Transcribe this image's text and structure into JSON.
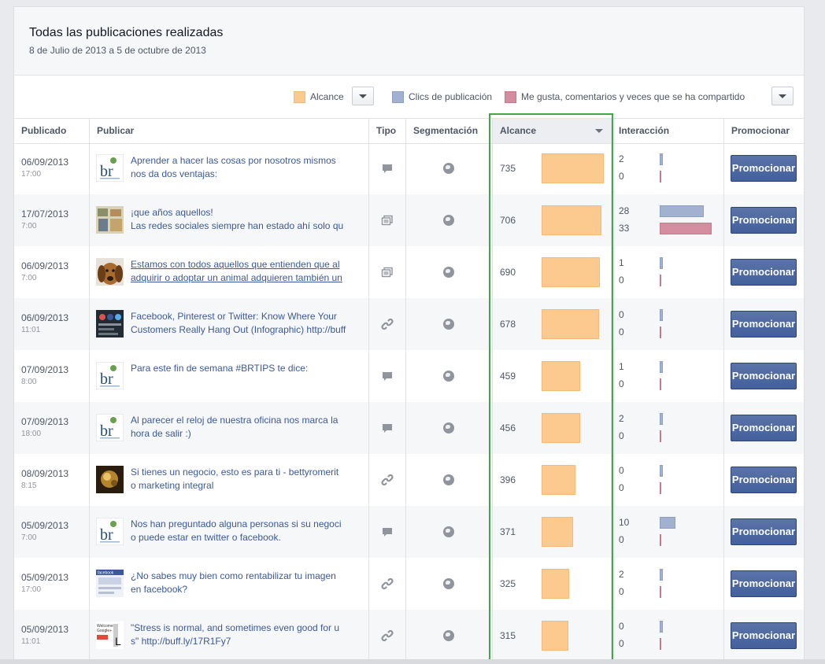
{
  "header": {
    "title": "Todas las publicaciones realizadas",
    "date_range": "8 de Julio de 2013 a 5 de octubre de 2013"
  },
  "legend": {
    "alcance": "Alcance",
    "clics": "Clics de publicación",
    "me_gusta": "Me gusta, comentarios y veces que se ha compartido"
  },
  "colors": {
    "alcance": "#fcc98e",
    "clics": "#a3b1d0",
    "me_gusta": "#d48e9f",
    "button": "#43609c",
    "highlight": "#3fa94a"
  },
  "columns": {
    "publicado": "Publicado",
    "publicar": "Publicar",
    "tipo": "Tipo",
    "segmentacion": "Segmentación",
    "alcance": "Alcance",
    "interaccion": "Interacción",
    "promocionar": "Promocionar"
  },
  "rows": [
    {
      "date": "06/09/2013",
      "time": "17:00",
      "text": "Aprender a hacer las cosas por nosotros mismos\nnos da dos ventajas:",
      "type": "status",
      "thumb": "br-logo",
      "reach": 735,
      "clicks": 2,
      "likes": 0,
      "button": "Promocionar"
    },
    {
      "date": "17/07/2013",
      "time": "7:00",
      "text": "¡que años aquellos!\nLas redes sociales siempre han estado ahí solo qu",
      "type": "photo",
      "thumb": "collage",
      "reach": 706,
      "clicks": 28,
      "likes": 33,
      "button": "Promocionar"
    },
    {
      "date": "06/09/2013",
      "time": "7:00",
      "text": "Estamos con todos aquellos que entienden que al\nadquirir o adoptar un animal adquieren también un",
      "type": "photo",
      "thumb": "dog",
      "reach": 690,
      "clicks": 1,
      "likes": 0,
      "button": "Promocionar",
      "underline": true
    },
    {
      "date": "06/09/2013",
      "time": "11:01",
      "text": "Facebook, Pinterest or Twitter: Know Where Your\nCustomers Really Hang Out (Infographic) http://buff",
      "type": "link",
      "thumb": "infographic",
      "reach": 678,
      "clicks": 0,
      "likes": 0,
      "button": "Promocionar"
    },
    {
      "date": "07/09/2013",
      "time": "8:00",
      "text": "Para este fin de semana #BRTIPS te dice:",
      "type": "status",
      "thumb": "br-logo",
      "reach": 459,
      "clicks": 1,
      "likes": 0,
      "button": "Promocionar"
    },
    {
      "date": "07/09/2013",
      "time": "18:00",
      "text": "Al parecer el reloj de nuestra oficina nos marca la\nhora de salir :)",
      "type": "status",
      "thumb": "br-logo",
      "reach": 456,
      "clicks": 2,
      "likes": 0,
      "button": "Promocionar"
    },
    {
      "date": "08/09/2013",
      "time": "8:15",
      "text": "Si tienes un negocio, esto es para ti - bettyromerit\no marketing integral",
      "type": "link",
      "thumb": "gold",
      "reach": 396,
      "clicks": 0,
      "likes": 0,
      "button": "Promocionar"
    },
    {
      "date": "05/09/2013",
      "time": "7:00",
      "text": "Nos han preguntado alguna personas si su negoci\no puede estar en twitter o facebook.",
      "type": "status",
      "thumb": "br-logo",
      "reach": 371,
      "clicks": 10,
      "likes": 0,
      "button": "Promocionar"
    },
    {
      "date": "05/09/2013",
      "time": "17:00",
      "text": "¿No sabes muy bien como rentabilizar tu imagen\nen facebook?",
      "type": "link",
      "thumb": "facebook",
      "reach": 325,
      "clicks": 2,
      "likes": 0,
      "button": "Promocionar"
    },
    {
      "date": "05/09/2013",
      "time": "11:01",
      "text": "\"Stress is normal, and sometimes even good for u\ns\" http://buff.ly/17R1Fy7",
      "type": "link",
      "thumb": "welcome",
      "reach": 315,
      "clicks": 0,
      "likes": 0,
      "button": "Promocionar"
    }
  ]
}
